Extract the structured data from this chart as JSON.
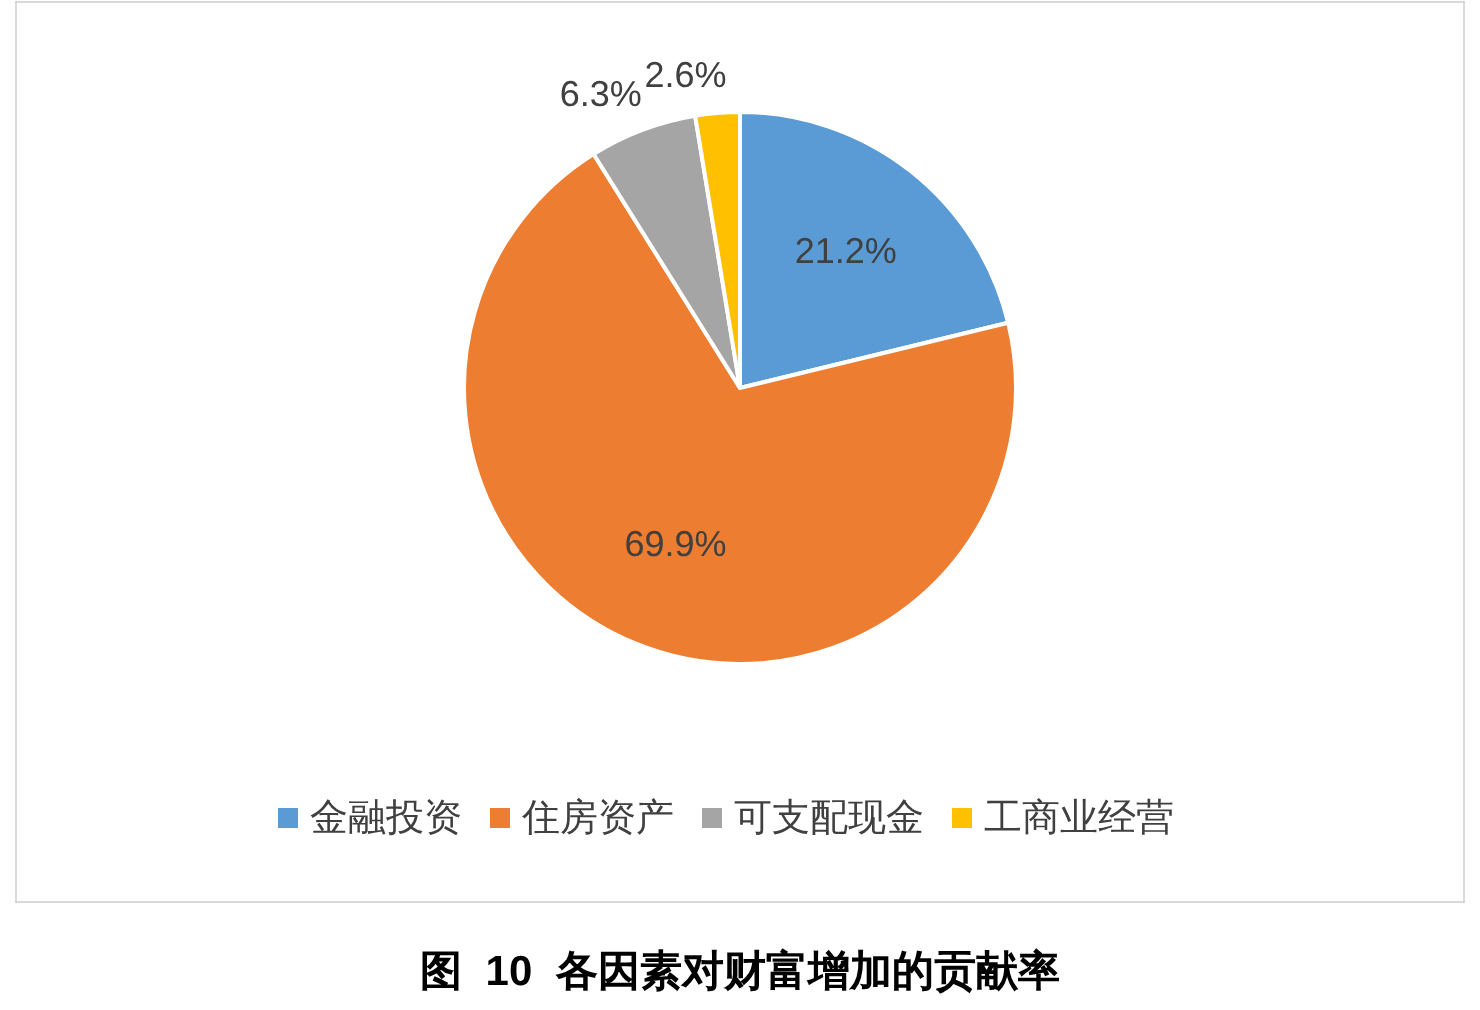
{
  "chart_data": {
    "type": "pie",
    "title": "图  10  各因素对财富增加的贡献率",
    "categories": [
      "金融投资",
      "住房资产",
      "可支配现金",
      "工商业经营"
    ],
    "values": [
      21.2,
      69.9,
      6.3,
      2.6
    ],
    "value_labels": [
      "21.2%",
      "69.9%",
      "6.3%",
      "2.6%"
    ],
    "colors": [
      "#5b9bd5",
      "#ed7d31",
      "#a5a5a5",
      "#ffc000"
    ],
    "legend": "bottom"
  }
}
